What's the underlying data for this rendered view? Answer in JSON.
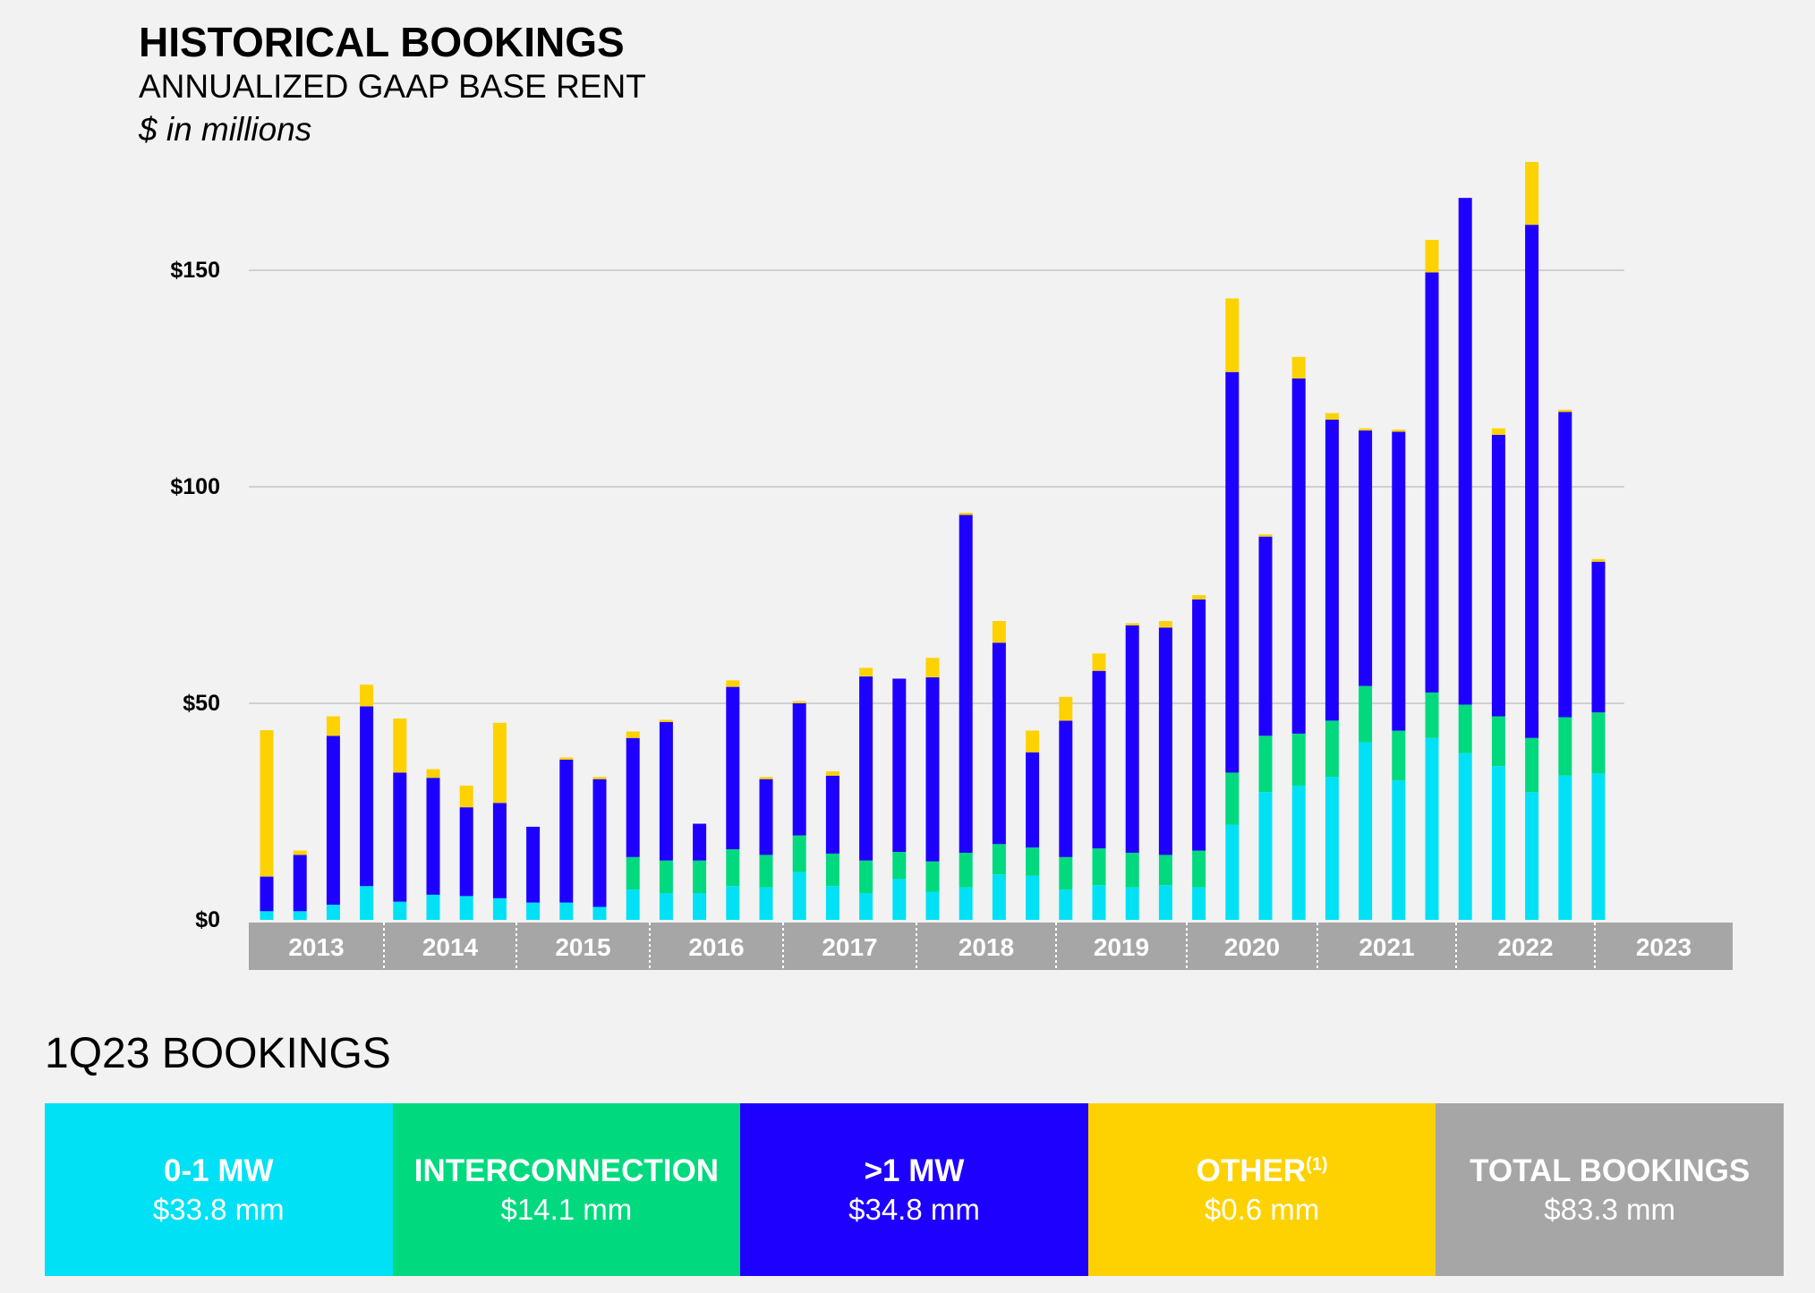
{
  "header": {
    "title": "HISTORICAL BOOKINGS",
    "subtitle": "ANNUALIZED GAAP BASE RENT",
    "units": "$ in millions"
  },
  "chart_data": {
    "type": "bar",
    "stacked": true,
    "yticks": [
      "$0",
      "$50",
      "$100",
      "$150"
    ],
    "ylim": [
      0,
      175
    ],
    "grid": true,
    "categories": [
      "2013 Q1",
      "2013 Q2",
      "2013 Q3",
      "2013 Q4",
      "2014 Q1",
      "2014 Q2",
      "2014 Q3",
      "2014 Q4",
      "2015 Q1",
      "2015 Q2",
      "2015 Q3",
      "2015 Q4",
      "2016 Q1",
      "2016 Q2",
      "2016 Q3",
      "2016 Q4",
      "2017 Q1",
      "2017 Q2",
      "2017 Q3",
      "2017 Q4",
      "2018 Q1",
      "2018 Q2",
      "2018 Q3",
      "2018 Q4",
      "2019 Q1",
      "2019 Q2",
      "2019 Q3",
      "2019 Q4",
      "2020 Q1",
      "2020 Q2",
      "2020 Q3",
      "2020 Q4",
      "2021 Q1",
      "2021 Q2",
      "2021 Q3",
      "2021 Q4",
      "2022 Q1",
      "2022 Q2",
      "2022 Q3",
      "2022 Q4",
      "2023 Q1"
    ],
    "year_groups": [
      {
        "label": "2013",
        "count": 4
      },
      {
        "label": "2014",
        "count": 4
      },
      {
        "label": "2015",
        "count": 4
      },
      {
        "label": "2016",
        "count": 4
      },
      {
        "label": "2017",
        "count": 4
      },
      {
        "label": "2018",
        "count": 4
      },
      {
        "label": "2019",
        "count": 4
      },
      {
        "label": "2020",
        "count": 4
      },
      {
        "label": "2021",
        "count": 4
      },
      {
        "label": "2022",
        "count": 4
      },
      {
        "label": "2023",
        "count": 1
      }
    ],
    "series": [
      {
        "name": "0-1 MW",
        "color": "#00e1f5",
        "values": [
          2,
          2,
          3.5,
          7.8,
          4.2,
          5.8,
          5.5,
          5,
          4,
          4,
          3,
          7,
          6.2,
          6.2,
          7.8,
          7.5,
          11,
          7.8,
          6.2,
          9.5,
          6.5,
          7.5,
          10.5,
          10.2,
          7,
          8,
          7.5,
          8,
          7.5,
          22,
          29.5,
          31,
          33,
          41,
          32.2,
          42,
          38.5,
          35.5,
          29.5,
          33.3,
          33.8
        ]
      },
      {
        "name": "Interconnection",
        "color": "#00d97e",
        "values": [
          0,
          0,
          0,
          0,
          0,
          0,
          0,
          0,
          0,
          0,
          0,
          7.5,
          7.5,
          7.5,
          8.5,
          7.5,
          8.5,
          7.5,
          7.5,
          6.2,
          7,
          8,
          7,
          6.5,
          7.5,
          8.5,
          8,
          7,
          8.5,
          12,
          13,
          12,
          13,
          13,
          11.5,
          10.5,
          11.2,
          11.5,
          12.5,
          13.5,
          14.1
        ]
      },
      {
        "name": ">1 MW",
        "color": "#1e00ff",
        "values": [
          8,
          13,
          39,
          41.5,
          29.8,
          27,
          20.5,
          22,
          17.5,
          33,
          29.5,
          27.5,
          32,
          8.5,
          37.5,
          17.5,
          30.5,
          18,
          42.5,
          40,
          42.5,
          78,
          46.5,
          22,
          31.5,
          41,
          52.5,
          52.5,
          58,
          92.5,
          46,
          82,
          69.5,
          59,
          69,
          97,
          117,
          65,
          118.5,
          70.5,
          34.8
        ]
      },
      {
        "name": "Other",
        "color": "#fdd200",
        "values": [
          33.8,
          1,
          4.5,
          5,
          12.5,
          2,
          5,
          18.5,
          0,
          0.5,
          0.5,
          1.5,
          0.5,
          0,
          1.5,
          0.5,
          0.5,
          1,
          2,
          0,
          4.5,
          0.5,
          5,
          5,
          5.5,
          4,
          0.5,
          1.5,
          1,
          17,
          0.5,
          5,
          1.5,
          0.5,
          0.5,
          7.5,
          0,
          1.5,
          14.5,
          0.5,
          0.6
        ]
      }
    ]
  },
  "summary": {
    "title": "1Q23 BOOKINGS",
    "tiles": [
      {
        "label": "0-1 MW",
        "value": "$33.8 mm",
        "color": "#00e1f5",
        "note": ""
      },
      {
        "label": "INTERCONNECTION",
        "value": "$14.1 mm",
        "color": "#00d97e",
        "note": ""
      },
      {
        "label": ">1 MW",
        "value": "$34.8 mm",
        "color": "#1e00ff",
        "note": ""
      },
      {
        "label": "OTHER",
        "value": "$0.6 mm",
        "color": "#fdd200",
        "note": "(1)"
      },
      {
        "label": "TOTAL BOOKINGS",
        "value": "$83.3 mm",
        "color": "#a6a6a6",
        "note": ""
      }
    ]
  }
}
